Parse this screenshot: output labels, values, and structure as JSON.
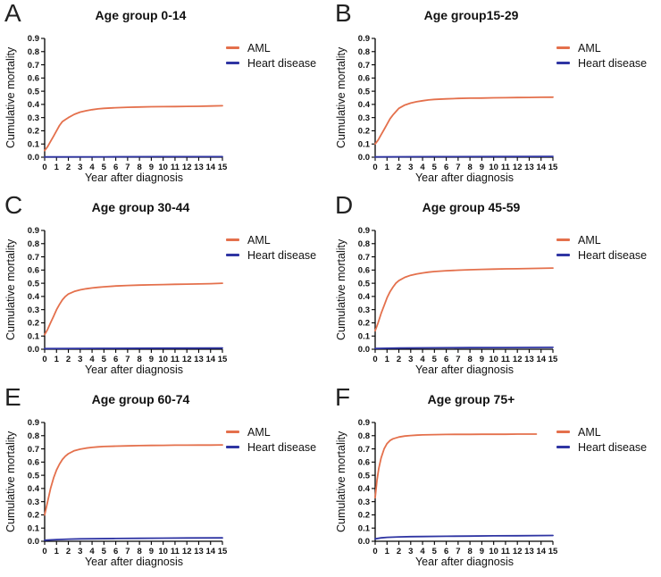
{
  "figure": {
    "background": "#ffffff",
    "text_color": "#111111",
    "aml_color": "#E4704C",
    "heart_color": "#2F35A3"
  },
  "chart_data": [
    {
      "type": "line",
      "panel": "A",
      "title": "Age group 0-14",
      "xlabel": "Year after diagnosis",
      "ylabel": "Cumulative mortality",
      "xlim": [
        0,
        15
      ],
      "ylim": [
        0,
        0.9
      ],
      "grid": false,
      "legend_position": "right",
      "xticks": [
        "0",
        "1",
        "2",
        "3",
        "4",
        "5",
        "6",
        "7",
        "8",
        "9",
        "10",
        "11",
        "12",
        "13",
        "14",
        "15"
      ],
      "yticks": [
        "0.0",
        "0.1",
        "0.2",
        "0.3",
        "0.4",
        "0.5",
        "0.6",
        "0.7",
        "0.8",
        "0.9"
      ],
      "series": [
        {
          "name": "AML",
          "color": "#E4704C",
          "points": [
            [
              0,
              0.05
            ],
            [
              0.25,
              0.08
            ],
            [
              0.5,
              0.12
            ],
            [
              0.75,
              0.16
            ],
            [
              1,
              0.2
            ],
            [
              1.25,
              0.24
            ],
            [
              1.5,
              0.27
            ],
            [
              1.75,
              0.285
            ],
            [
              2,
              0.3
            ],
            [
              2.5,
              0.325
            ],
            [
              3,
              0.342
            ],
            [
              3.5,
              0.352
            ],
            [
              4,
              0.36
            ],
            [
              4.5,
              0.366
            ],
            [
              5,
              0.37
            ],
            [
              6,
              0.375
            ],
            [
              7,
              0.378
            ],
            [
              8,
              0.38
            ],
            [
              9,
              0.382
            ],
            [
              10,
              0.383
            ],
            [
              11,
              0.384
            ],
            [
              12,
              0.385
            ],
            [
              13,
              0.386
            ],
            [
              14,
              0.388
            ],
            [
              15,
              0.39
            ]
          ]
        },
        {
          "name": "Heart disease",
          "color": "#2F35A3",
          "points": [
            [
              0,
              0.002
            ],
            [
              5,
              0.003
            ],
            [
              10,
              0.004
            ],
            [
              15,
              0.004
            ]
          ]
        }
      ]
    },
    {
      "type": "line",
      "panel": "B",
      "title": "Age group15-29",
      "xlabel": "Year after diagnosis",
      "ylabel": "Cumulative mortality",
      "xlim": [
        0,
        15
      ],
      "ylim": [
        0,
        0.9
      ],
      "grid": false,
      "legend_position": "right",
      "xticks": [
        "0",
        "1",
        "2",
        "3",
        "4",
        "5",
        "6",
        "7",
        "8",
        "9",
        "10",
        "11",
        "12",
        "13",
        "14",
        "15"
      ],
      "yticks": [
        "0.0",
        "0.1",
        "0.2",
        "0.3",
        "0.4",
        "0.5",
        "0.6",
        "0.7",
        "0.8",
        "0.9"
      ],
      "series": [
        {
          "name": "AML",
          "color": "#E4704C",
          "points": [
            [
              0,
              0.1
            ],
            [
              0.25,
              0.13
            ],
            [
              0.5,
              0.17
            ],
            [
              0.75,
              0.21
            ],
            [
              1,
              0.25
            ],
            [
              1.25,
              0.29
            ],
            [
              1.5,
              0.32
            ],
            [
              1.75,
              0.345
            ],
            [
              2,
              0.37
            ],
            [
              2.5,
              0.395
            ],
            [
              3,
              0.41
            ],
            [
              3.5,
              0.42
            ],
            [
              4,
              0.428
            ],
            [
              4.5,
              0.434
            ],
            [
              5,
              0.438
            ],
            [
              6,
              0.442
            ],
            [
              7,
              0.445
            ],
            [
              8,
              0.447
            ],
            [
              9,
              0.448
            ],
            [
              10,
              0.45
            ],
            [
              11,
              0.451
            ],
            [
              12,
              0.452
            ],
            [
              13,
              0.453
            ],
            [
              14,
              0.454
            ],
            [
              15,
              0.455
            ]
          ]
        },
        {
          "name": "Heart disease",
          "color": "#2F35A3",
          "points": [
            [
              0,
              0.002
            ],
            [
              5,
              0.004
            ],
            [
              10,
              0.005
            ],
            [
              15,
              0.006
            ]
          ]
        }
      ]
    },
    {
      "type": "line",
      "panel": "C",
      "title": "Age group 30-44",
      "xlabel": "Year after diagnosis",
      "ylabel": "Cumulative mortality",
      "xlim": [
        0,
        15
      ],
      "ylim": [
        0,
        0.9
      ],
      "grid": false,
      "legend_position": "right",
      "xticks": [
        "0",
        "1",
        "2",
        "3",
        "4",
        "5",
        "6",
        "7",
        "8",
        "9",
        "10",
        "11",
        "12",
        "13",
        "14",
        "15"
      ],
      "yticks": [
        "0.0",
        "0.1",
        "0.2",
        "0.3",
        "0.4",
        "0.5",
        "0.6",
        "0.7",
        "0.8",
        "0.9"
      ],
      "series": [
        {
          "name": "AML",
          "color": "#E4704C",
          "points": [
            [
              0,
              0.11
            ],
            [
              0.25,
              0.15
            ],
            [
              0.5,
              0.2
            ],
            [
              0.75,
              0.25
            ],
            [
              1,
              0.3
            ],
            [
              1.25,
              0.34
            ],
            [
              1.5,
              0.375
            ],
            [
              1.75,
              0.4
            ],
            [
              2,
              0.418
            ],
            [
              2.5,
              0.438
            ],
            [
              3,
              0.45
            ],
            [
              3.5,
              0.458
            ],
            [
              4,
              0.464
            ],
            [
              4.5,
              0.469
            ],
            [
              5,
              0.473
            ],
            [
              6,
              0.479
            ],
            [
              7,
              0.483
            ],
            [
              8,
              0.486
            ],
            [
              9,
              0.488
            ],
            [
              10,
              0.49
            ],
            [
              11,
              0.492
            ],
            [
              12,
              0.493
            ],
            [
              13,
              0.495
            ],
            [
              14,
              0.497
            ],
            [
              15,
              0.5
            ]
          ]
        },
        {
          "name": "Heart disease",
          "color": "#2F35A3",
          "points": [
            [
              0,
              0.005
            ],
            [
              5,
              0.007
            ],
            [
              10,
              0.008
            ],
            [
              15,
              0.009
            ]
          ]
        }
      ]
    },
    {
      "type": "line",
      "panel": "D",
      "title": "Age group 45-59",
      "xlabel": "Year after diagnosis",
      "ylabel": "Cumulative mortality",
      "xlim": [
        0,
        15
      ],
      "ylim": [
        0,
        0.9
      ],
      "grid": false,
      "legend_position": "right",
      "xticks": [
        "0",
        "1",
        "2",
        "3",
        "4",
        "5",
        "6",
        "7",
        "8",
        "9",
        "10",
        "11",
        "12",
        "13",
        "14",
        "15"
      ],
      "yticks": [
        "0.0",
        "0.1",
        "0.2",
        "0.3",
        "0.4",
        "0.5",
        "0.6",
        "0.7",
        "0.8",
        "0.9"
      ],
      "series": [
        {
          "name": "AML",
          "color": "#E4704C",
          "points": [
            [
              0,
              0.14
            ],
            [
              0.25,
              0.2
            ],
            [
              0.5,
              0.27
            ],
            [
              0.75,
              0.33
            ],
            [
              1,
              0.39
            ],
            [
              1.25,
              0.435
            ],
            [
              1.5,
              0.47
            ],
            [
              1.75,
              0.5
            ],
            [
              2,
              0.52
            ],
            [
              2.5,
              0.545
            ],
            [
              3,
              0.56
            ],
            [
              3.5,
              0.57
            ],
            [
              4,
              0.578
            ],
            [
              4.5,
              0.584
            ],
            [
              5,
              0.589
            ],
            [
              6,
              0.595
            ],
            [
              7,
              0.599
            ],
            [
              8,
              0.602
            ],
            [
              9,
              0.605
            ],
            [
              10,
              0.607
            ],
            [
              11,
              0.609
            ],
            [
              12,
              0.61
            ],
            [
              13,
              0.612
            ],
            [
              14,
              0.613
            ],
            [
              15,
              0.615
            ]
          ]
        },
        {
          "name": "Heart disease",
          "color": "#2F35A3",
          "points": [
            [
              0,
              0.006
            ],
            [
              2,
              0.009
            ],
            [
              5,
              0.011
            ],
            [
              8,
              0.012
            ],
            [
              11,
              0.013
            ],
            [
              15,
              0.014
            ]
          ]
        }
      ]
    },
    {
      "type": "line",
      "panel": "E",
      "title": "Age group 60-74",
      "xlabel": "Year after diagnosis",
      "ylabel": "Cumulative mortality",
      "xlim": [
        0,
        15
      ],
      "ylim": [
        0,
        0.9
      ],
      "grid": false,
      "legend_position": "right",
      "xticks": [
        "0",
        "1",
        "2",
        "3",
        "4",
        "5",
        "6",
        "7",
        "8",
        "9",
        "10",
        "11",
        "12",
        "13",
        "14",
        "15"
      ],
      "yticks": [
        "0.0",
        "0.1",
        "0.2",
        "0.3",
        "0.4",
        "0.5",
        "0.6",
        "0.7",
        "0.8",
        "0.9"
      ],
      "series": [
        {
          "name": "AML",
          "color": "#E4704C",
          "points": [
            [
              0,
              0.2
            ],
            [
              0.25,
              0.3
            ],
            [
              0.5,
              0.4
            ],
            [
              0.75,
              0.48
            ],
            [
              1,
              0.54
            ],
            [
              1.25,
              0.585
            ],
            [
              1.5,
              0.62
            ],
            [
              1.75,
              0.645
            ],
            [
              2,
              0.663
            ],
            [
              2.5,
              0.686
            ],
            [
              3,
              0.698
            ],
            [
              3.5,
              0.706
            ],
            [
              4,
              0.711
            ],
            [
              4.5,
              0.715
            ],
            [
              5,
              0.718
            ],
            [
              6,
              0.721
            ],
            [
              7,
              0.723
            ],
            [
              8,
              0.725
            ],
            [
              9,
              0.726
            ],
            [
              10,
              0.727
            ],
            [
              11,
              0.728
            ],
            [
              12,
              0.728
            ],
            [
              13,
              0.729
            ],
            [
              14,
              0.729
            ],
            [
              15,
              0.73
            ]
          ]
        },
        {
          "name": "Heart disease",
          "color": "#2F35A3",
          "points": [
            [
              0,
              0.008
            ],
            [
              1,
              0.013
            ],
            [
              2,
              0.016
            ],
            [
              3,
              0.018
            ],
            [
              4,
              0.019
            ],
            [
              6,
              0.021
            ],
            [
              8,
              0.022
            ],
            [
              10,
              0.024
            ],
            [
              12,
              0.025
            ],
            [
              15,
              0.026
            ]
          ]
        }
      ]
    },
    {
      "type": "line",
      "panel": "F",
      "title": "Age group 75+",
      "xlabel": "Year after diagnosis",
      "ylabel": "Cumulative mortality",
      "xlim": [
        0,
        15
      ],
      "ylim": [
        0,
        0.9
      ],
      "grid": false,
      "legend_position": "right",
      "xticks": [
        "0",
        "1",
        "2",
        "3",
        "4",
        "5",
        "6",
        "7",
        "8",
        "9",
        "10",
        "11",
        "12",
        "13",
        "14",
        "15"
      ],
      "yticks": [
        "0.0",
        "0.1",
        "0.2",
        "0.3",
        "0.4",
        "0.5",
        "0.6",
        "0.7",
        "0.8",
        "0.9"
      ],
      "series": [
        {
          "name": "AML",
          "color": "#E4704C",
          "points": [
            [
              0,
              0.33
            ],
            [
              0.15,
              0.46
            ],
            [
              0.3,
              0.55
            ],
            [
              0.5,
              0.63
            ],
            [
              0.75,
              0.7
            ],
            [
              1,
              0.74
            ],
            [
              1.25,
              0.763
            ],
            [
              1.5,
              0.776
            ],
            [
              2,
              0.79
            ],
            [
              2.5,
              0.797
            ],
            [
              3,
              0.801
            ],
            [
              3.5,
              0.804
            ],
            [
              4,
              0.806
            ],
            [
              5,
              0.808
            ],
            [
              6,
              0.809
            ],
            [
              7,
              0.81
            ],
            [
              8,
              0.81
            ],
            [
              9,
              0.811
            ],
            [
              10,
              0.811
            ],
            [
              11,
              0.811
            ],
            [
              12,
              0.812
            ],
            [
              13,
              0.812
            ],
            [
              13.6,
              0.812
            ]
          ]
        },
        {
          "name": "Heart disease",
          "color": "#2F35A3",
          "points": [
            [
              0,
              0.018
            ],
            [
              0.5,
              0.026
            ],
            [
              1,
              0.03
            ],
            [
              2,
              0.033
            ],
            [
              3,
              0.035
            ],
            [
              4,
              0.036
            ],
            [
              6,
              0.038
            ],
            [
              8,
              0.039
            ],
            [
              10,
              0.041
            ],
            [
              12,
              0.042
            ],
            [
              15,
              0.044
            ]
          ]
        }
      ]
    }
  ]
}
